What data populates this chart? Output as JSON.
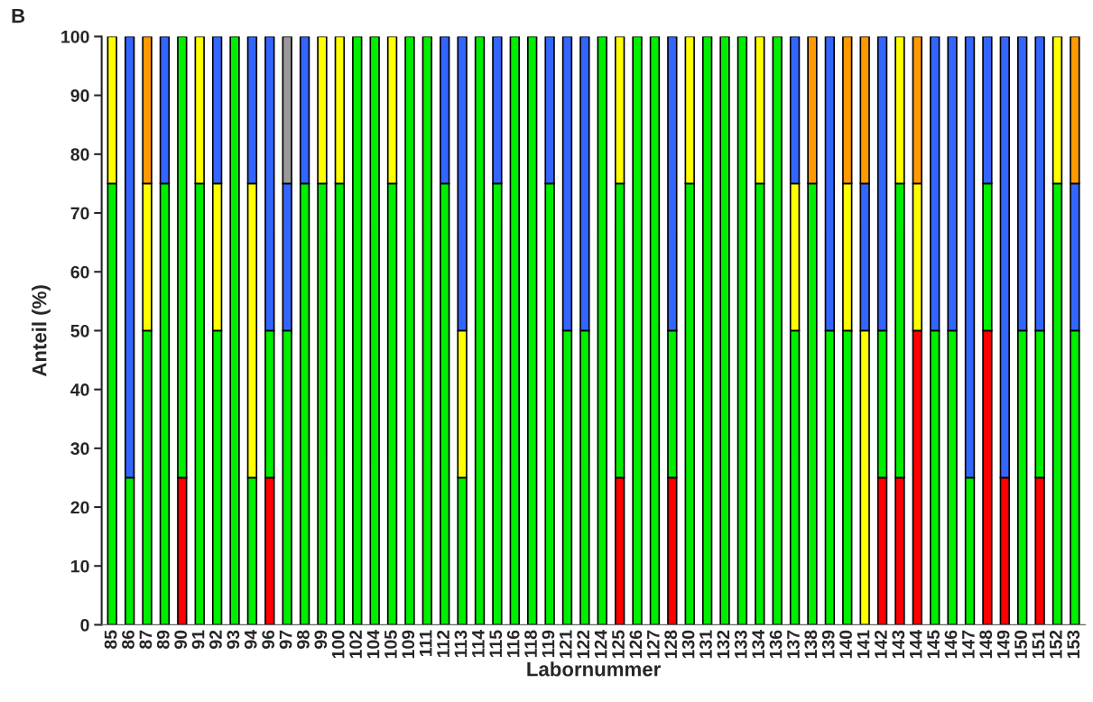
{
  "chart_data": {
    "type": "bar",
    "stacked": true,
    "xlabel": "Labornummer",
    "ylabel": "Anteil (%)",
    "annotations": [
      "B"
    ],
    "categories": [
      "85",
      "86",
      "87",
      "89",
      "90",
      "91",
      "92",
      "93",
      "94",
      "96",
      "97",
      "98",
      "99",
      "100",
      "102",
      "104",
      "105",
      "109",
      "111",
      "112",
      "113",
      "114",
      "115",
      "116",
      "118",
      "119",
      "121",
      "122",
      "124",
      "125",
      "126",
      "127",
      "128",
      "130",
      "131",
      "132",
      "133",
      "134",
      "136",
      "137",
      "138",
      "139",
      "140",
      "141",
      "142",
      "143",
      "144",
      "145",
      "146",
      "147",
      "148",
      "149",
      "150",
      "151",
      "152",
      "153"
    ],
    "ylim": [
      0,
      100
    ],
    "yticks": [
      0,
      10,
      20,
      30,
      40,
      50,
      60,
      70,
      80,
      90,
      100
    ],
    "grid": false,
    "legend": false,
    "series": [
      {
        "color": "#ff0000",
        "values": [
          null,
          null,
          null,
          null,
          25,
          null,
          null,
          null,
          null,
          25,
          null,
          null,
          null,
          null,
          null,
          null,
          null,
          null,
          null,
          null,
          null,
          null,
          null,
          null,
          null,
          null,
          null,
          null,
          null,
          25,
          null,
          null,
          25,
          null,
          null,
          null,
          null,
          null,
          null,
          null,
          null,
          null,
          null,
          null,
          25,
          25,
          50,
          null,
          null,
          null,
          50,
          25,
          null,
          25,
          null,
          null
        ]
      },
      {
        "color": "#00ee00",
        "values": [
          75,
          25,
          50,
          75,
          75,
          75,
          50,
          100,
          25,
          25,
          50,
          75,
          75,
          75,
          100,
          100,
          75,
          100,
          100,
          75,
          25,
          100,
          75,
          100,
          100,
          75,
          50,
          50,
          100,
          50,
          100,
          100,
          25,
          75,
          100,
          100,
          100,
          75,
          100,
          50,
          75,
          50,
          50,
          null,
          25,
          50,
          null,
          50,
          50,
          25,
          25,
          null,
          50,
          25,
          75,
          50
        ]
      },
      {
        "color": "#ffff00",
        "values": [
          25,
          null,
          25,
          null,
          null,
          25,
          25,
          null,
          50,
          null,
          null,
          null,
          25,
          25,
          null,
          null,
          25,
          null,
          null,
          null,
          25,
          null,
          null,
          null,
          null,
          null,
          null,
          null,
          null,
          25,
          null,
          null,
          null,
          25,
          null,
          null,
          null,
          25,
          null,
          25,
          null,
          null,
          25,
          50,
          null,
          25,
          25,
          null,
          null,
          null,
          null,
          null,
          null,
          null,
          25,
          null
        ]
      },
      {
        "color": "#3366ff",
        "values": [
          null,
          75,
          null,
          25,
          null,
          null,
          25,
          null,
          25,
          50,
          25,
          25,
          null,
          null,
          null,
          null,
          null,
          null,
          null,
          25,
          50,
          null,
          25,
          null,
          null,
          25,
          50,
          50,
          null,
          null,
          null,
          null,
          50,
          null,
          null,
          null,
          null,
          null,
          null,
          25,
          null,
          50,
          null,
          25,
          50,
          null,
          null,
          50,
          50,
          75,
          25,
          75,
          50,
          50,
          null,
          25
        ]
      },
      {
        "color": "#ff9900",
        "values": [
          null,
          null,
          25,
          null,
          null,
          null,
          null,
          null,
          null,
          null,
          null,
          null,
          null,
          null,
          null,
          null,
          null,
          null,
          null,
          null,
          null,
          null,
          null,
          null,
          null,
          null,
          null,
          null,
          null,
          null,
          null,
          null,
          null,
          null,
          null,
          null,
          null,
          null,
          null,
          null,
          25,
          null,
          25,
          25,
          null,
          null,
          25,
          null,
          null,
          null,
          null,
          null,
          null,
          null,
          null,
          25
        ]
      },
      {
        "color": "#999999",
        "values": [
          null,
          null,
          null,
          null,
          null,
          null,
          null,
          null,
          null,
          null,
          25,
          null,
          null,
          null,
          null,
          null,
          null,
          null,
          null,
          null,
          null,
          null,
          null,
          null,
          null,
          null,
          null,
          null,
          null,
          null,
          null,
          null,
          null,
          null,
          null,
          null,
          null,
          null,
          null,
          null,
          null,
          null,
          null,
          null,
          null,
          null,
          null,
          null,
          null,
          null,
          null,
          null,
          null,
          null,
          null,
          null
        ]
      }
    ]
  }
}
